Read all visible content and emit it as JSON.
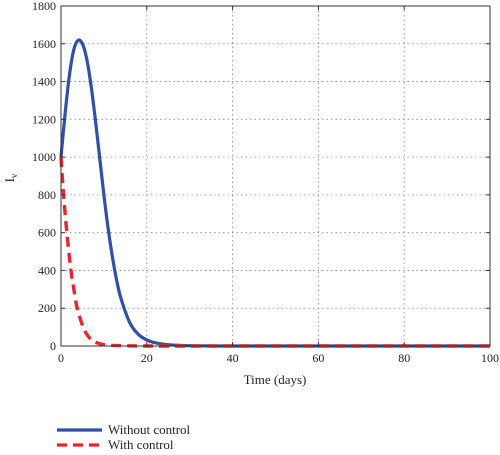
{
  "chart_data": {
    "type": "line",
    "title": "",
    "xlabel": "Time (days)",
    "ylabel": "I",
    "ylabel_subscript": "v",
    "xlim": [
      0,
      100
    ],
    "ylim": [
      0,
      1800
    ],
    "xticks": [
      0,
      20,
      40,
      60,
      80,
      100
    ],
    "yticks": [
      0,
      200,
      400,
      600,
      800,
      1000,
      1200,
      1400,
      1600,
      1800
    ],
    "grid": true,
    "legend_position": "bottom-left",
    "series": [
      {
        "name": "Without control",
        "color": "#2f4fa8",
        "style": "solid",
        "x": [
          0,
          1,
          2,
          3,
          4,
          5,
          6,
          7,
          8,
          9,
          10,
          11,
          12,
          13,
          14,
          16,
          18,
          20,
          22,
          25,
          28,
          32,
          36,
          40,
          50,
          60,
          70,
          80,
          90,
          100
        ],
        "y": [
          1000,
          1240,
          1440,
          1570,
          1618,
          1600,
          1520,
          1380,
          1200,
          1000,
          800,
          620,
          470,
          345,
          250,
          125,
          62,
          32,
          17,
          7,
          3,
          1,
          0,
          0,
          0,
          0,
          0,
          0,
          0,
          0
        ]
      },
      {
        "name": "With control",
        "color": "#e8262a",
        "style": "dashed",
        "x": [
          0,
          0.5,
          1,
          1.5,
          2,
          2.5,
          3,
          3.5,
          4,
          5,
          6,
          7,
          8,
          10,
          12,
          15,
          20,
          30,
          40,
          50,
          60,
          70,
          80,
          90,
          100
        ],
        "y": [
          1000,
          830,
          690,
          570,
          460,
          370,
          300,
          230,
          180,
          110,
          62,
          35,
          20,
          7,
          3,
          1,
          0,
          0,
          0,
          0,
          0,
          0,
          0,
          0,
          0
        ]
      }
    ]
  }
}
